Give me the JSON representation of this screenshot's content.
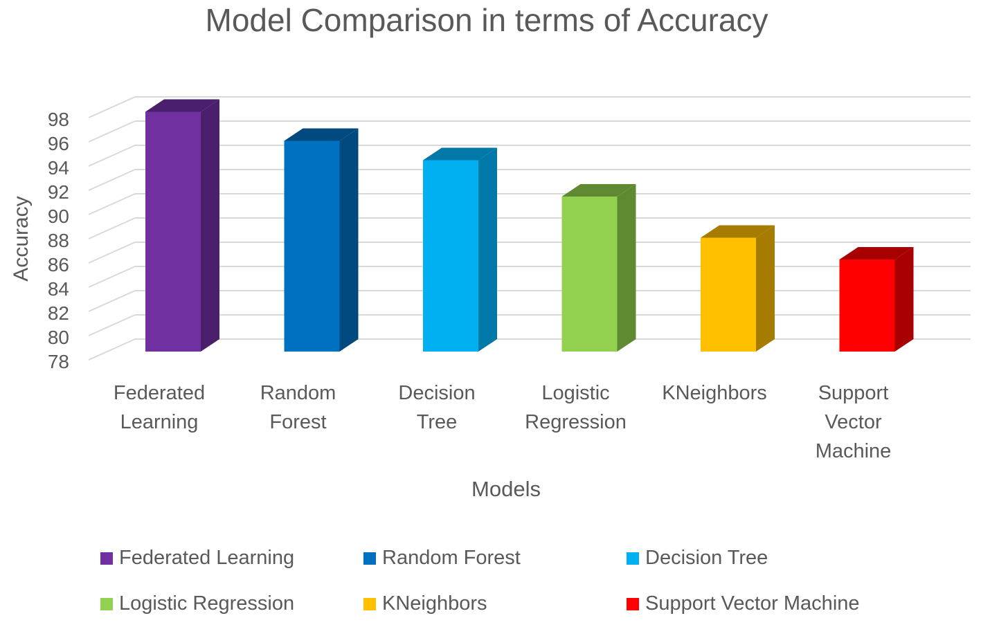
{
  "chart_data": {
    "type": "bar",
    "title": "Model Comparison in terms of Accuracy",
    "xlabel": "Models",
    "ylabel": "Accuracy",
    "categories": [
      "Federated Learning",
      "Random Forest",
      "Decision Tree",
      "Logistic Regression",
      "KNeighbors",
      "Support Vector Machine"
    ],
    "category_label_lines": [
      [
        "Federated",
        "Learning"
      ],
      [
        "Random",
        "Forest"
      ],
      [
        "Decision",
        "Tree"
      ],
      [
        "Logistic",
        "Regression"
      ],
      [
        "KNeighbors"
      ],
      [
        "Support",
        "Vector",
        "Machine"
      ]
    ],
    "values": [
      97.8,
      95.4,
      93.8,
      90.8,
      87.4,
      85.6
    ],
    "ylim": [
      78,
      98
    ],
    "yticks": [
      78,
      80,
      82,
      84,
      86,
      88,
      90,
      92,
      94,
      96,
      98
    ],
    "colors": [
      "#7030a0",
      "#0070c0",
      "#00b0f0",
      "#92d050",
      "#ffc000",
      "#ff0000"
    ],
    "side_colors": [
      "#4a1f6b",
      "#004a80",
      "#0078a8",
      "#5f8a32",
      "#a67c00",
      "#a80000"
    ],
    "grid": true,
    "legend_position": "bottom"
  },
  "legend": [
    {
      "label": "Federated Learning",
      "color": "#7030a0"
    },
    {
      "label": "Random Forest",
      "color": "#0070c0"
    },
    {
      "label": "Decision Tree",
      "color": "#00b0f0"
    },
    {
      "label": "Logistic Regression",
      "color": "#92d050"
    },
    {
      "label": "KNeighbors",
      "color": "#ffc000"
    },
    {
      "label": "Support Vector Machine",
      "color": "#ff0000"
    }
  ]
}
